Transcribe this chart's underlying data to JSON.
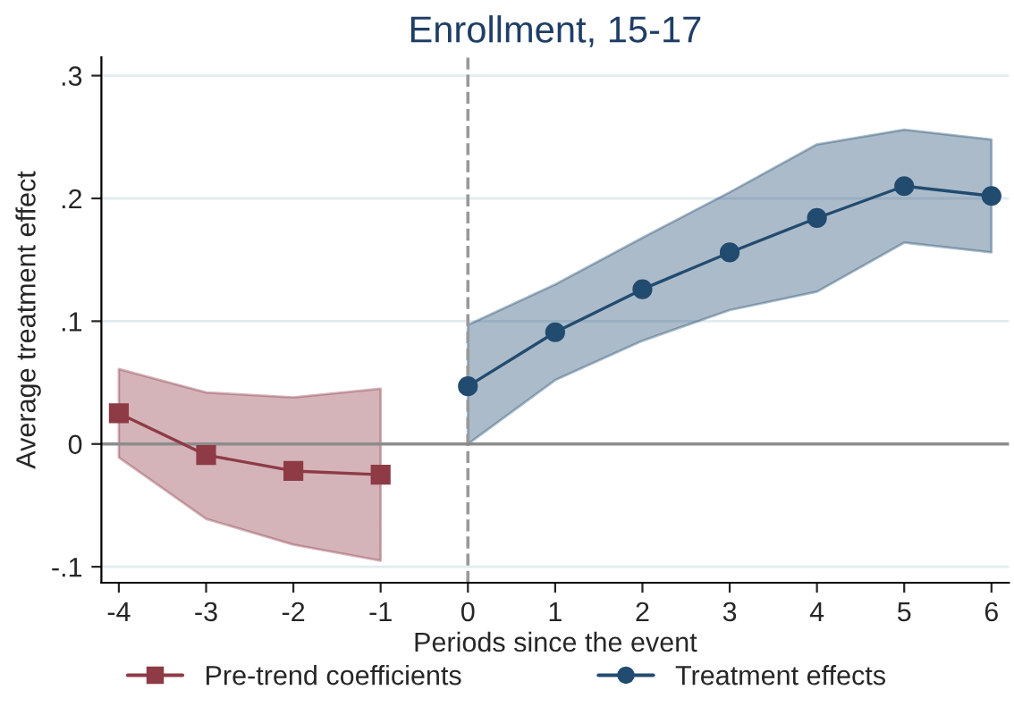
{
  "chart_data": {
    "type": "line",
    "title": "Enrollment, 15-17",
    "xlabel": "Periods since the event",
    "ylabel": "Average treatment effect",
    "series": [
      {
        "name": "Pre-trend coefficients",
        "color": "#8e3b46",
        "marker": "square",
        "x": [
          -4,
          -3,
          -2,
          -1
        ],
        "values": [
          0.025,
          -0.009,
          -0.022,
          -0.025
        ],
        "lower": [
          -0.011,
          -0.061,
          -0.082,
          -0.095
        ],
        "upper": [
          0.061,
          0.042,
          0.038,
          0.045
        ]
      },
      {
        "name": "Treatment effects",
        "color": "#224b70",
        "marker": "circle",
        "x": [
          0,
          1,
          2,
          3,
          4,
          5,
          6
        ],
        "values": [
          0.047,
          0.091,
          0.126,
          0.156,
          0.184,
          0.21,
          0.202
        ],
        "lower": [
          0.0,
          0.052,
          0.084,
          0.109,
          0.124,
          0.164,
          0.156
        ],
        "upper": [
          0.097,
          0.13,
          0.168,
          0.205,
          0.244,
          0.256,
          0.248
        ]
      }
    ],
    "xlim": [
      -4.2,
      6.2
    ],
    "xticks": [
      -4,
      -3,
      -2,
      -1,
      0,
      1,
      2,
      3,
      4,
      5,
      6
    ],
    "ylim": [
      -0.113,
      0.315
    ],
    "yticks": [
      {
        "value": -0.1,
        "label": "-.1"
      },
      {
        "value": 0,
        "label": "0"
      },
      {
        "value": 0.1,
        "label": ".1"
      },
      {
        "value": 0.2,
        "label": ".2"
      },
      {
        "value": 0.3,
        "label": ".3"
      }
    ],
    "ref_lines": [
      {
        "axis": "x",
        "value": 0,
        "color": "#999999",
        "line_style": "dashed"
      },
      {
        "axis": "y",
        "value": 0,
        "color": "#8c8c8c",
        "line_style": "solid"
      }
    ],
    "grid": "y",
    "legend": "bottom",
    "line_style": "solid"
  }
}
